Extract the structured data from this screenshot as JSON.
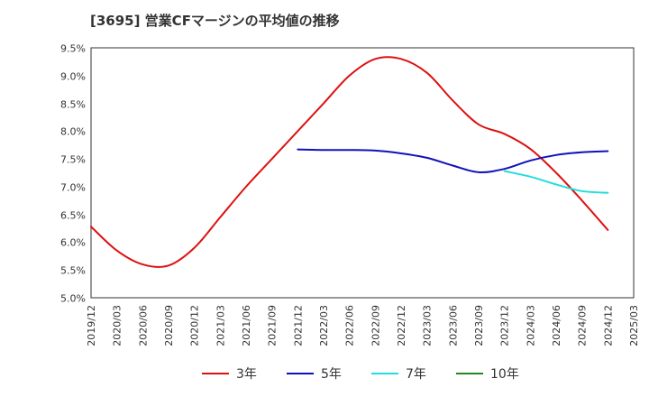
{
  "chart_data": {
    "type": "line",
    "title": "[3695]  営業CFマージンの平均値の推移",
    "xlabel": "",
    "ylabel": "",
    "ylim": [
      5.0,
      9.5
    ],
    "y_ticks": [
      "9.5%",
      "9.0%",
      "8.5%",
      "8.0%",
      "7.5%",
      "7.0%",
      "6.5%",
      "6.0%",
      "5.5%",
      "5.0%"
    ],
    "y_tick_values": [
      9.5,
      9.0,
      8.5,
      8.0,
      7.5,
      7.0,
      6.5,
      6.0,
      5.5,
      5.0
    ],
    "x_ticks": [
      "2019/12",
      "2020/03",
      "2020/06",
      "2020/09",
      "2020/12",
      "2021/03",
      "2021/06",
      "2021/09",
      "2021/12",
      "2022/03",
      "2022/06",
      "2022/09",
      "2022/12",
      "2023/03",
      "2023/06",
      "2023/09",
      "2023/12",
      "2024/03",
      "2024/06",
      "2024/09",
      "2024/12",
      "2025/03"
    ],
    "grid": true,
    "legend_position": "bottom",
    "series": [
      {
        "name": "3年",
        "color": "#dd1111",
        "points": [
          {
            "x": "2019/12",
            "y": 6.28
          },
          {
            "x": "2020/03",
            "y": 5.85
          },
          {
            "x": "2020/06",
            "y": 5.6
          },
          {
            "x": "2020/09",
            "y": 5.58
          },
          {
            "x": "2020/12",
            "y": 5.9
          },
          {
            "x": "2021/03",
            "y": 6.45
          },
          {
            "x": "2021/06",
            "y": 7.0
          },
          {
            "x": "2021/09",
            "y": 7.5
          },
          {
            "x": "2021/12",
            "y": 8.0
          },
          {
            "x": "2022/03",
            "y": 8.5
          },
          {
            "x": "2022/06",
            "y": 9.0
          },
          {
            "x": "2022/09",
            "y": 9.3
          },
          {
            "x": "2022/12",
            "y": 9.3
          },
          {
            "x": "2023/03",
            "y": 9.05
          },
          {
            "x": "2023/06",
            "y": 8.55
          },
          {
            "x": "2023/09",
            "y": 8.12
          },
          {
            "x": "2023/12",
            "y": 7.95
          },
          {
            "x": "2024/03",
            "y": 7.68
          },
          {
            "x": "2024/06",
            "y": 7.25
          },
          {
            "x": "2024/09",
            "y": 6.75
          },
          {
            "x": "2024/12",
            "y": 6.22
          }
        ]
      },
      {
        "name": "5年",
        "color": "#1111bb",
        "points": [
          {
            "x": "2021/12",
            "y": 7.67
          },
          {
            "x": "2022/03",
            "y": 7.66
          },
          {
            "x": "2022/06",
            "y": 7.66
          },
          {
            "x": "2022/09",
            "y": 7.65
          },
          {
            "x": "2022/12",
            "y": 7.6
          },
          {
            "x": "2023/03",
            "y": 7.52
          },
          {
            "x": "2023/06",
            "y": 7.38
          },
          {
            "x": "2023/09",
            "y": 7.26
          },
          {
            "x": "2023/12",
            "y": 7.32
          },
          {
            "x": "2024/03",
            "y": 7.47
          },
          {
            "x": "2024/06",
            "y": 7.57
          },
          {
            "x": "2024/09",
            "y": 7.62
          },
          {
            "x": "2024/12",
            "y": 7.64
          }
        ]
      },
      {
        "name": "7年",
        "color": "#22dddd",
        "points": [
          {
            "x": "2023/12",
            "y": 7.28
          },
          {
            "x": "2024/03",
            "y": 7.18
          },
          {
            "x": "2024/06",
            "y": 7.04
          },
          {
            "x": "2024/09",
            "y": 6.92
          },
          {
            "x": "2024/12",
            "y": 6.89
          }
        ]
      },
      {
        "name": "10年",
        "color": "#228822",
        "points": []
      }
    ]
  }
}
